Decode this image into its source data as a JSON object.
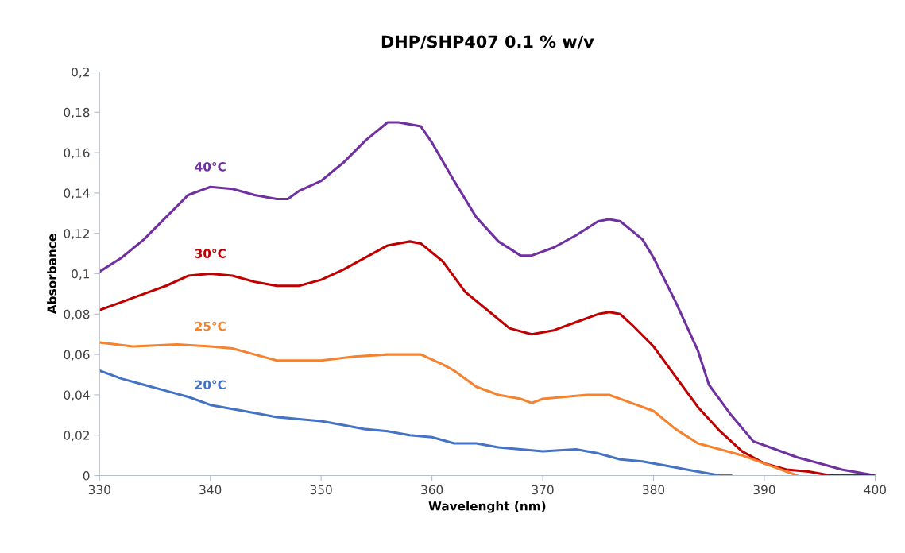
{
  "chart_data": {
    "type": "line",
    "title": "DHP/SHP407 0.1 % w/v",
    "xlabel": "Wavelenght (nm)",
    "ylabel": "Absorbance",
    "xlim": [
      330,
      400
    ],
    "xticks": [
      330,
      340,
      350,
      360,
      370,
      380,
      390,
      400
    ],
    "ylim": [
      0,
      0.2
    ],
    "yticks": [
      {
        "value": 0,
        "label": "0"
      },
      {
        "value": 0.02,
        "label": "0,02"
      },
      {
        "value": 0.04,
        "label": "0,04"
      },
      {
        "value": 0.06,
        "label": "0,06"
      },
      {
        "value": 0.08,
        "label": "0,08"
      },
      {
        "value": 0.1,
        "label": "0,1"
      },
      {
        "value": 0.12,
        "label": "0,12"
      },
      {
        "value": 0.14,
        "label": "0,14"
      },
      {
        "value": 0.16,
        "label": "0,16"
      },
      {
        "value": 0.18,
        "label": "0,18"
      },
      {
        "value": 0.2,
        "label": "0,2"
      }
    ],
    "grid": false,
    "legend": false,
    "marker": "none",
    "line_style": "solid",
    "series": [
      {
        "name": "40°C",
        "color": "#7030a0",
        "x": [
          330,
          332,
          334,
          336,
          338,
          340,
          342,
          344,
          346,
          347,
          348,
          350,
          352,
          354,
          356,
          357,
          359,
          360,
          362,
          364,
          366,
          368,
          369,
          371,
          373,
          375,
          376,
          377,
          379,
          380,
          382,
          384,
          385,
          387,
          389,
          391,
          393,
          395,
          397,
          400
        ],
        "values": [
          0.101,
          0.108,
          0.117,
          0.128,
          0.139,
          0.143,
          0.142,
          0.139,
          0.137,
          0.137,
          0.141,
          0.146,
          0.155,
          0.166,
          0.175,
          0.175,
          0.173,
          0.165,
          0.146,
          0.128,
          0.116,
          0.109,
          0.109,
          0.113,
          0.119,
          0.126,
          0.127,
          0.126,
          0.117,
          0.108,
          0.086,
          0.062,
          0.045,
          0.03,
          0.017,
          0.013,
          0.009,
          0.006,
          0.003,
          0.0
        ]
      },
      {
        "name": "30°C",
        "color": "#c00000",
        "x": [
          330,
          332,
          334,
          336,
          338,
          340,
          342,
          344,
          346,
          348,
          350,
          352,
          354,
          356,
          358,
          359,
          361,
          363,
          365,
          367,
          369,
          371,
          373,
          375,
          376,
          377,
          378,
          380,
          382,
          384,
          386,
          388,
          390,
          392,
          394,
          396,
          400
        ],
        "values": [
          0.082,
          0.086,
          0.09,
          0.094,
          0.099,
          0.1,
          0.099,
          0.096,
          0.094,
          0.094,
          0.097,
          0.102,
          0.108,
          0.114,
          0.116,
          0.115,
          0.106,
          0.091,
          0.082,
          0.073,
          0.07,
          0.072,
          0.076,
          0.08,
          0.081,
          0.08,
          0.075,
          0.064,
          0.049,
          0.034,
          0.022,
          0.012,
          0.006,
          0.003,
          0.002,
          0.0,
          0.0
        ]
      },
      {
        "name": "25°C",
        "color": "#f4822e",
        "x": [
          330,
          333,
          337,
          340,
          342,
          344,
          346,
          348,
          350,
          353,
          356,
          358,
          359,
          361,
          362,
          364,
          366,
          368,
          369,
          370,
          372,
          374,
          376,
          378,
          380,
          382,
          384,
          386,
          388,
          390,
          392,
          393
        ],
        "values": [
          0.066,
          0.064,
          0.065,
          0.064,
          0.063,
          0.06,
          0.057,
          0.057,
          0.057,
          0.059,
          0.06,
          0.06,
          0.06,
          0.055,
          0.052,
          0.044,
          0.04,
          0.038,
          0.036,
          0.038,
          0.039,
          0.04,
          0.04,
          0.036,
          0.032,
          0.023,
          0.016,
          0.013,
          0.01,
          0.006,
          0.002,
          0.0
        ]
      },
      {
        "name": "20°C",
        "color": "#4472c4",
        "x": [
          330,
          332,
          334,
          336,
          338,
          340,
          342,
          344,
          346,
          348,
          350,
          352,
          354,
          356,
          358,
          360,
          362,
          364,
          366,
          368,
          370,
          373,
          375,
          377,
          379,
          381,
          383,
          385,
          386,
          387
        ],
        "values": [
          0.052,
          0.048,
          0.045,
          0.042,
          0.039,
          0.035,
          0.033,
          0.031,
          0.029,
          0.028,
          0.027,
          0.025,
          0.023,
          0.022,
          0.02,
          0.019,
          0.016,
          0.016,
          0.014,
          0.013,
          0.012,
          0.013,
          0.011,
          0.008,
          0.007,
          0.005,
          0.003,
          0.001,
          0.0,
          0.0
        ]
      }
    ]
  }
}
